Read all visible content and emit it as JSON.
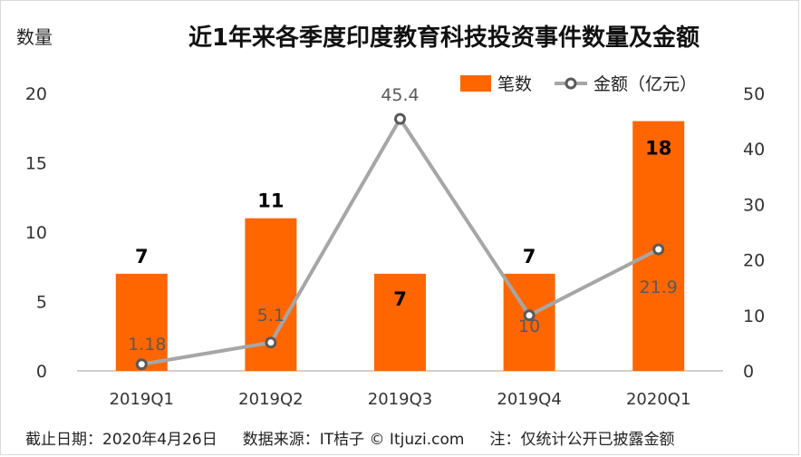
{
  "chart_data": {
    "type": "bar+line",
    "title": "近1年来各季度印度教育科技投资事件数量及金额",
    "ylabel_left": "数量",
    "categories": [
      "2019Q1",
      "2019Q2",
      "2019Q3",
      "2019Q4",
      "2020Q1"
    ],
    "series": [
      {
        "name": "笔数",
        "type": "bar",
        "axis": "left",
        "values": [
          7,
          11,
          7,
          7,
          18
        ],
        "labels": [
          "7",
          "11",
          "7",
          "7",
          "18"
        ]
      },
      {
        "name": "金额（亿元）",
        "type": "line",
        "axis": "right",
        "values": [
          1.18,
          5.1,
          45.4,
          10,
          21.9
        ],
        "labels": [
          "1.18",
          "5.1",
          "45.4",
          "10",
          "21.9"
        ]
      }
    ],
    "ylim_left": [
      0,
      20
    ],
    "yticks_left": [
      "0",
      "5",
      "10",
      "15",
      "20"
    ],
    "ylim_right": [
      0,
      50
    ],
    "yticks_right": [
      "0",
      "10",
      "20",
      "30",
      "40",
      "50"
    ],
    "legend_position": "top-right",
    "grid": false,
    "colors": {
      "bar": "#ff6600",
      "line": "#a6a6a6",
      "marker_stroke": "#595959"
    }
  },
  "footer": {
    "date": "截止日期：2020年4月26日",
    "source": "数据来源：IT桔子 © Itjuzi.com",
    "note": "注：仅统计公开已披露金额"
  }
}
